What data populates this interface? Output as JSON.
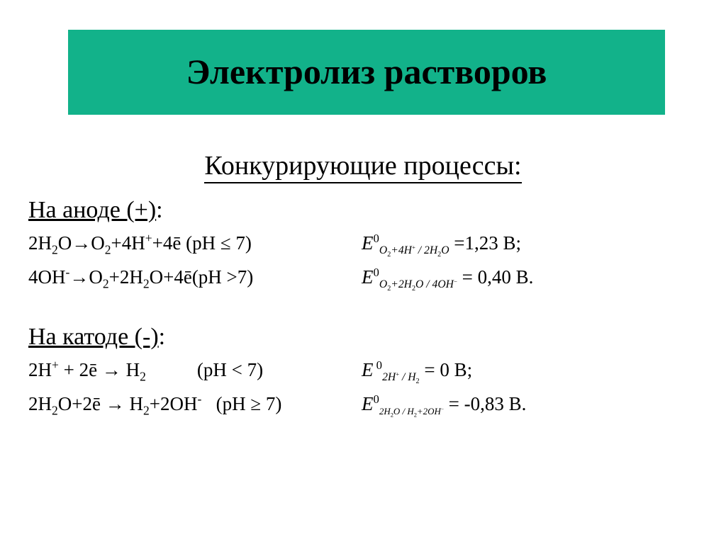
{
  "colors": {
    "title_bg": "#12b28a",
    "title_fg": "#000000",
    "body_fg": "#000000",
    "page_bg": "#ffffff"
  },
  "fonts": {
    "title_size_pt": 50,
    "subtitle_size_pt": 38,
    "section_head_size_pt": 34,
    "body_size_pt": 27,
    "family": "Times New Roman"
  },
  "title": "Электролиз растворов",
  "subtitle": "Конкурирующие процессы:",
  "anode": {
    "heading_underlined": "На аноде (+)",
    "heading_tail": ":",
    "rows": [
      {
        "reaction_html": "2H<span class='sub'>2</span>O→O<span class='sub'>2</span>+4H<span class='sup'>+</span>+4ē (pH ≤ 7)",
        "E_sub_html": "O<span class='sub'>2</span>+4H<span class='psupm'>+</span> / 2H<span class='sub'>2</span>O",
        "value": "=1,23 В;"
      },
      {
        "reaction_html": "4OH<span class='sup'>-</span>→O<span class='sub'>2</span>+2H<span class='sub'>2</span>O+4ē(pH >7)",
        "E_sub_html": "O<span class='sub'>2</span>+2H<span class='sub'>2</span>O / 4OH<span class='psupm'>−</span>",
        "value": "=  0,40 В."
      }
    ]
  },
  "cathode": {
    "heading_underlined": "На катоде (-)",
    "heading_tail": ":",
    "rows": [
      {
        "reaction_html": "2H<span class='sup'>+</span> + 2ē → H<span class='sub'>2</span><span class='gap'></span><span class='gap'></span><span class='gap'></span>(pH &lt; 7)",
        "E_sub_html": "2H<span class='psupm'>+</span> / H<span class='sub'>2</span>",
        "sub_small": false,
        "value": "= 0 В;"
      },
      {
        "reaction_html": "2H<span class='sub'>2</span>O+2ē → H<span class='sub'>2</span>+2OH<span class='sup'>-</span>&nbsp;&nbsp;&nbsp;(pH ≥ 7)",
        "E_sub_html": "2H<span class='sub'>2</span>O / H<span class='sub'>2</span>+2OH<span class='psupm'>−</span>",
        "sub_small": true,
        "value": "= -0,83 В."
      }
    ]
  }
}
